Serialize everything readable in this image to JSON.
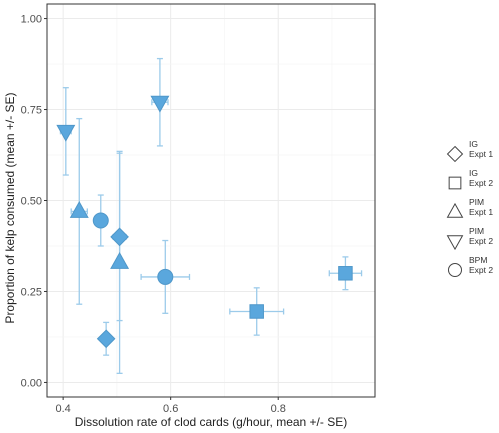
{
  "chart_data": {
    "type": "scatter",
    "xlabel": "Dissolution rate of clod cards (g/hour, mean +/- SE)",
    "ylabel": "Proportion of kelp consumed (mean +/- SE)",
    "xlim": [
      0.37,
      0.98
    ],
    "ylim": [
      -0.04,
      1.04
    ],
    "xticks": [
      0.4,
      0.6,
      0.8
    ],
    "xtick_labels": [
      "0.4",
      "0.6",
      "0.8"
    ],
    "yticks": [
      0.0,
      0.25,
      0.5,
      0.75,
      1.0
    ],
    "ytick_labels": [
      "0.00",
      "0.25",
      "0.50",
      "0.75",
      "1.00"
    ],
    "grid": true,
    "legend_position": "right",
    "point_color": "#5aa7dd",
    "errorbar_color": "#9ccbea",
    "series": [
      {
        "name": [
          "IG",
          "Expt 1"
        ],
        "shape": "diamond",
        "points": [
          {
            "x": 0.48,
            "y": 0.12,
            "x_err": 0.0,
            "y_err": 0.045
          },
          {
            "x": 0.505,
            "y": 0.4,
            "x_err": 0.012,
            "y_err": 0.23
          }
        ]
      },
      {
        "name": [
          "IG",
          "Expt 2"
        ],
        "shape": "square",
        "points": [
          {
            "x": 0.76,
            "y": 0.195,
            "x_err": 0.05,
            "y_err": 0.065
          },
          {
            "x": 0.925,
            "y": 0.3,
            "x_err": 0.03,
            "y_err": 0.045
          }
        ]
      },
      {
        "name": [
          "PIM",
          "Expt 1"
        ],
        "shape": "triangle-up",
        "points": [
          {
            "x": 0.43,
            "y": 0.47,
            "x_err": 0.015,
            "y_err": 0.255
          },
          {
            "x": 0.505,
            "y": 0.33,
            "x_err": 0.005,
            "y_err": 0.305
          }
        ]
      },
      {
        "name": [
          "PIM",
          "Expt 2"
        ],
        "shape": "triangle-down",
        "points": [
          {
            "x": 0.405,
            "y": 0.69,
            "x_err": 0.01,
            "y_err": 0.12
          },
          {
            "x": 0.58,
            "y": 0.77,
            "x_err": 0.015,
            "y_err": 0.12
          }
        ]
      },
      {
        "name": [
          "BPM",
          "Expt 2"
        ],
        "shape": "circle",
        "points": [
          {
            "x": 0.47,
            "y": 0.445,
            "x_err": 0.0,
            "y_err": 0.07
          },
          {
            "x": 0.59,
            "y": 0.29,
            "x_err": 0.045,
            "y_err": 0.1
          }
        ]
      }
    ]
  }
}
